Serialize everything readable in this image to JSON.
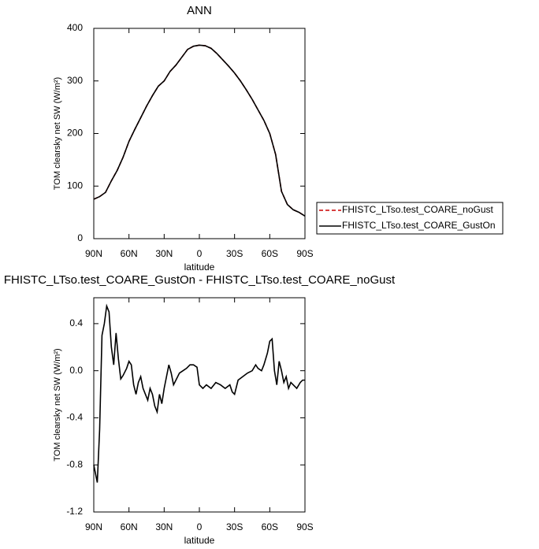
{
  "chart_data": [
    {
      "type": "line",
      "title": "ANN",
      "xlabel": "latitude",
      "ylabel": "TOM clearsky net SW (W/m²)",
      "x": [
        90,
        85,
        80,
        75,
        70,
        65,
        60,
        55,
        50,
        45,
        40,
        35,
        30,
        25,
        20,
        15,
        10,
        5,
        0,
        -5,
        -10,
        -15,
        -20,
        -25,
        -30,
        -35,
        -40,
        -45,
        -50,
        -55,
        -60,
        -65,
        -70,
        -75,
        -80,
        -85,
        -90
      ],
      "series": [
        {
          "name": "FHISTC_LTso.test_COARE_noGust",
          "color": "#cc0000",
          "dashed": true,
          "values": [
            75,
            80,
            88,
            110,
            130,
            155,
            185,
            208,
            230,
            252,
            272,
            290,
            300,
            318,
            330,
            345,
            360,
            366,
            368,
            367,
            362,
            352,
            340,
            328,
            315,
            300,
            283,
            265,
            245,
            225,
            200,
            160,
            90,
            65,
            55,
            50,
            43
          ]
        },
        {
          "name": "FHISTC_LTso.test_COARE_GustOn",
          "color": "#000000",
          "dashed": false,
          "values": [
            75,
            80,
            88,
            110,
            130,
            155,
            185,
            208,
            230,
            252,
            272,
            290,
            300,
            318,
            330,
            345,
            360,
            366,
            368,
            367,
            362,
            352,
            340,
            328,
            315,
            300,
            283,
            265,
            245,
            225,
            200,
            160,
            90,
            65,
            55,
            50,
            43
          ]
        }
      ],
      "xlim": [
        90,
        -90
      ],
      "xticks": [
        {
          "value": 90,
          "label": "90N"
        },
        {
          "value": 60,
          "label": "60N"
        },
        {
          "value": 30,
          "label": "30N"
        },
        0,
        {
          "value": -30,
          "label": "30S"
        },
        {
          "value": -60,
          "label": "60S"
        },
        {
          "value": -90,
          "label": "90S"
        }
      ],
      "ylim": [
        0,
        400
      ],
      "yticks": [
        0,
        100,
        200,
        300,
        400
      ]
    },
    {
      "type": "line",
      "title": "FHISTC_LTso.test_COARE_GustOn - FHISTC_LTso.test_COARE_noGust",
      "xlabel": "latitude",
      "ylabel": "TOM clearsky net SW (W/m²)",
      "x": [
        90,
        88,
        87,
        85,
        83,
        81,
        79,
        77,
        75,
        73,
        71,
        69,
        67,
        65,
        62,
        60,
        58,
        56,
        54,
        52,
        50,
        48,
        46,
        44,
        42,
        40,
        38,
        36,
        34,
        32,
        30,
        28,
        26,
        24,
        22,
        20,
        17,
        14,
        11,
        8,
        5,
        2,
        0,
        -3,
        -6,
        -10,
        -14,
        -18,
        -22,
        -26,
        -28,
        -30,
        -33,
        -37,
        -41,
        -45,
        -48,
        -50,
        -53,
        -55,
        -58,
        -60,
        -62,
        -64,
        -66,
        -68,
        -70,
        -72,
        -74,
        -76,
        -78,
        -80,
        -83,
        -86,
        -88,
        -90
      ],
      "series": [
        {
          "name": null,
          "color": "#000000",
          "dashed": false,
          "values": [
            -0.8,
            -0.9,
            -0.95,
            -0.5,
            0.3,
            0.4,
            0.55,
            0.5,
            0.2,
            0.05,
            0.32,
            0.1,
            -0.07,
            -0.04,
            0.02,
            0.08,
            0.05,
            -0.12,
            -0.2,
            -0.1,
            -0.05,
            -0.15,
            -0.2,
            -0.25,
            -0.15,
            -0.2,
            -0.3,
            -0.35,
            -0.2,
            -0.28,
            -0.15,
            -0.05,
            0.05,
            -0.02,
            -0.12,
            -0.08,
            -0.02,
            0.0,
            0.02,
            0.05,
            0.05,
            0.03,
            -0.12,
            -0.15,
            -0.12,
            -0.15,
            -0.1,
            -0.12,
            -0.15,
            -0.12,
            -0.18,
            -0.2,
            -0.08,
            -0.05,
            -0.02,
            0.0,
            0.05,
            0.02,
            0.0,
            0.05,
            0.15,
            0.25,
            0.27,
            0.0,
            -0.12,
            0.08,
            0.0,
            -0.1,
            -0.05,
            -0.15,
            -0.1,
            -0.12,
            -0.15,
            -0.1,
            -0.08,
            -0.08
          ]
        }
      ],
      "xlim": [
        90,
        -90
      ],
      "xticks": [
        {
          "value": 90,
          "label": "90N"
        },
        {
          "value": 60,
          "label": "60N"
        },
        {
          "value": 30,
          "label": "30N"
        },
        0,
        {
          "value": -30,
          "label": "30S"
        },
        {
          "value": -60,
          "label": "60S"
        },
        {
          "value": -90,
          "label": "90S"
        }
      ],
      "ylim": [
        -1.2,
        0.62
      ],
      "yticks": [
        -1.2,
        -0.8,
        -0.4,
        {
          "value": 0,
          "label": "0.0"
        },
        0.4
      ]
    }
  ]
}
